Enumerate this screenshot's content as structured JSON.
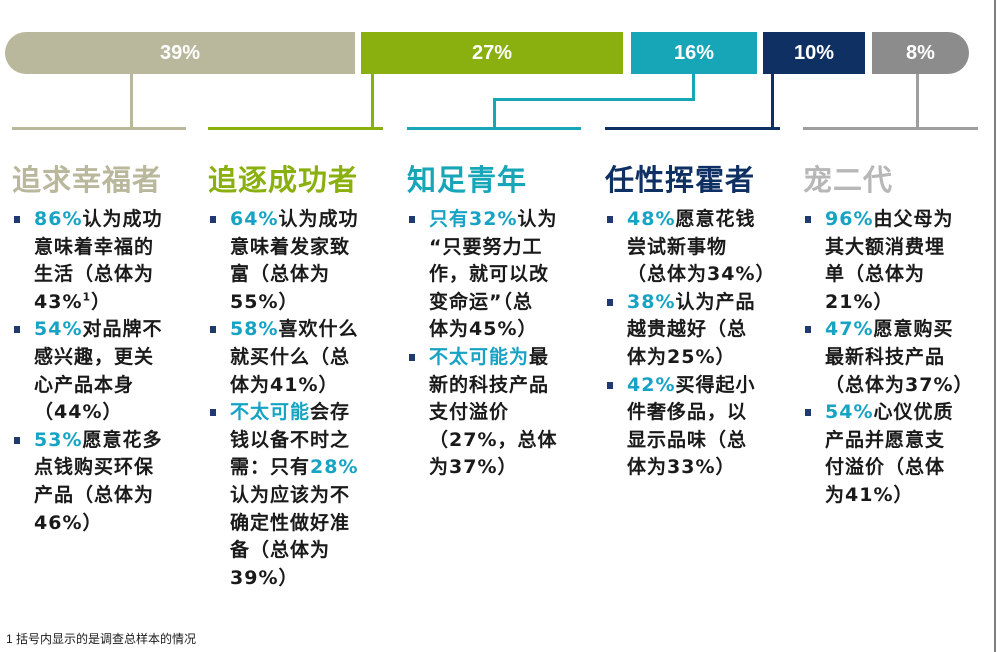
{
  "segments": [
    {
      "label": "39%",
      "color": "#b9b79c",
      "share": 0.39
    },
    {
      "label": "27%",
      "color": "#8ab00f",
      "share": 0.27
    },
    {
      "label": "16%",
      "color": "#17a6b8",
      "share": 0.16
    },
    {
      "label": "10%",
      "color": "#0e3063",
      "share": 0.1
    },
    {
      "label": "8%",
      "color": "#8c8c8c",
      "share": 0.08
    }
  ],
  "columns": [
    {
      "title": "追求幸福者",
      "color": "#b9b79c",
      "items": [
        {
          "pct": "86%",
          "lines": [
            "认为成功",
            "意味着幸福的",
            "生活（总体为",
            "43%"
          ],
          "sup": "1"
        },
        {
          "pct": "54%",
          "lines": [
            "对品牌不",
            "感兴趣，更关",
            "心产品本身",
            "（44%）"
          ]
        },
        {
          "pct": "53%",
          "lines": [
            "愿意花多",
            "点钱购买环保",
            "产品（总体为",
            "46%）"
          ]
        }
      ]
    },
    {
      "title": "追逐成功者",
      "color": "#8ab00f",
      "items": [
        {
          "pct": "64%",
          "lines": [
            "认为成功",
            "意味着发家致",
            "富（总体为",
            "55%）"
          ]
        },
        {
          "pct": "58%",
          "lines": [
            "喜欢什么",
            "就买什么（总",
            "体为41%）"
          ]
        },
        {
          "pct": "不太可能",
          "lines": [
            "会存",
            "钱以备不时之"
          ],
          "pct2": "28%",
          "lines2": [
            "需：只有",
            "认为应该为不",
            "确定性做好准",
            "备（总体为",
            "39%）"
          ]
        }
      ]
    },
    {
      "title": "知足青年",
      "color": "#17a6b8",
      "items": [
        {
          "pre": "只有",
          "pct": "32%",
          "lines": [
            "认为",
            "“只要努力工",
            "作，就可以改",
            "变命运”（总",
            "体为45%）"
          ]
        },
        {
          "pct": "不太可能为",
          "lines": [
            "最",
            "新的科技产品",
            "支付溢价",
            "（27%，总体",
            "为37%）"
          ]
        }
      ]
    },
    {
      "title": "任性挥霍者",
      "color": "#0e3063",
      "items": [
        {
          "pct": "48%",
          "lines": [
            "愿意花钱",
            "尝试新事物",
            "（总体为34%）"
          ]
        },
        {
          "pct": "38%",
          "lines": [
            "认为产品",
            "越贵越好（总",
            "体为25%）"
          ]
        },
        {
          "pct": "42%",
          "lines": [
            "买得起小",
            "件奢侈品，以",
            "显示品味（总",
            "体为33%）"
          ]
        }
      ]
    },
    {
      "title": "宠二代",
      "color": "#b7b7b7",
      "items": [
        {
          "pct": "96%",
          "lines": [
            "由父母为",
            "其大额消费埋",
            "单（总体为",
            "21%）"
          ]
        },
        {
          "pct": "47%",
          "lines": [
            "愿意购买",
            "最新科技产品",
            "（总体为37%）"
          ]
        },
        {
          "pct": "54%",
          "lines": [
            "心仪优质",
            "产品并愿意支",
            "付溢价（总体",
            "为41%）"
          ]
        }
      ]
    }
  ],
  "footnote": "1 括号内显示的是调查总样本的情况"
}
